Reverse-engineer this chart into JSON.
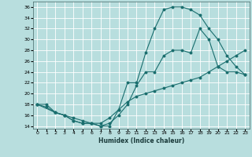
{
  "xlabel": "Humidex (Indice chaleur)",
  "bg_color": "#b8dede",
  "grid_color": "#ffffff",
  "line_color": "#1a6e6e",
  "xlim": [
    -0.5,
    23.5
  ],
  "ylim": [
    13.5,
    37
  ],
  "xticks": [
    0,
    1,
    2,
    3,
    4,
    5,
    6,
    7,
    8,
    9,
    10,
    11,
    12,
    13,
    14,
    15,
    16,
    17,
    18,
    19,
    20,
    21,
    22,
    23
  ],
  "yticks": [
    14,
    16,
    18,
    20,
    22,
    24,
    26,
    28,
    30,
    32,
    34,
    36
  ],
  "curve_top_x": [
    0,
    2,
    3,
    4,
    5,
    6,
    7,
    8,
    9,
    10,
    11,
    12,
    13,
    14,
    15,
    16,
    17,
    18,
    19,
    20,
    21,
    22,
    23
  ],
  "curve_top_y": [
    18,
    16.5,
    16,
    15,
    14.5,
    14.5,
    14,
    14,
    17,
    22,
    22,
    27.5,
    32,
    35.5,
    36,
    36,
    35.5,
    34.5,
    32,
    30,
    27,
    25,
    23.5
  ],
  "curve_mid_x": [
    0,
    1,
    2,
    3,
    4,
    5,
    6,
    7,
    8,
    9,
    10,
    11,
    12,
    13,
    14,
    15,
    16,
    17,
    18,
    19,
    20,
    21,
    22,
    23
  ],
  "curve_mid_y": [
    18,
    17.5,
    16.5,
    16,
    15,
    14.5,
    14.5,
    14,
    14.5,
    16,
    18,
    21.5,
    24,
    24,
    27,
    28,
    28,
    27.5,
    32,
    30,
    25,
    24,
    24,
    23.5
  ],
  "curve_bot_x": [
    0,
    1,
    2,
    3,
    4,
    5,
    6,
    7,
    8,
    9,
    10,
    11,
    12,
    13,
    14,
    15,
    16,
    17,
    18,
    19,
    20,
    21,
    22,
    23
  ],
  "curve_bot_y": [
    18,
    18,
    16.5,
    16,
    15.5,
    15,
    14.5,
    14.5,
    15.5,
    17,
    18.5,
    19.5,
    20,
    20.5,
    21,
    21.5,
    22,
    22.5,
    23,
    24,
    25,
    26,
    27,
    28
  ]
}
